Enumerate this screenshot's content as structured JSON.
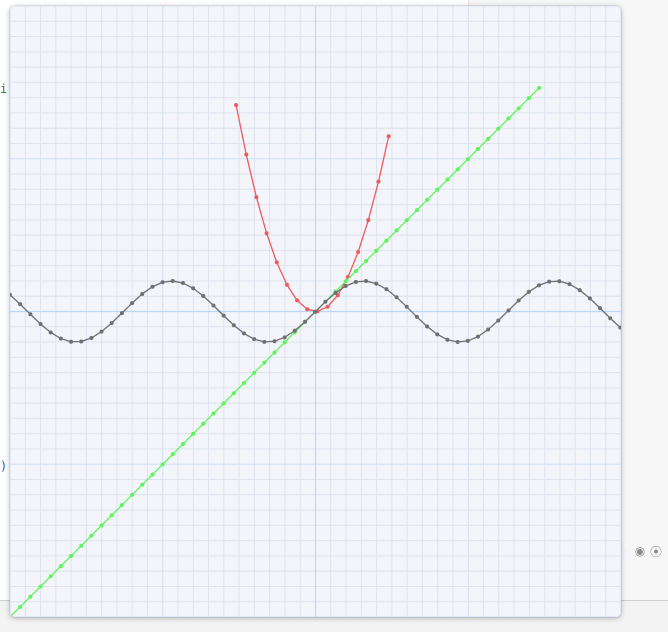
{
  "editor": {
    "fragments": [
      {
        "text": "i",
        "color": "#2e7d32"
      },
      {
        "text": ")",
        "color": "#1565c0"
      }
    ]
  },
  "popup": {
    "background": "#f3f5fa",
    "grid_minor_color": "#dde4f0",
    "grid_major_color": "#cfe0f7",
    "axis_color": "#bcd6f5"
  },
  "side_icons": [
    {
      "name": "eye-icon",
      "glyph": "◉"
    },
    {
      "name": "record-icon",
      "glyph": "⦿"
    }
  ],
  "chart_data": {
    "type": "line",
    "title": "",
    "xlabel": "",
    "ylabel": "",
    "xlim": [
      -10,
      10
    ],
    "ylim": [
      -10,
      10
    ],
    "grid": true,
    "series": [
      {
        "color": "#ef5a5a",
        "function": "x^2",
        "x_start": -2.6,
        "x_end": 2.6,
        "step": 0.333
      },
      {
        "color": "#5cf55c",
        "function": "x",
        "x_start": -10,
        "x_end": 7.4,
        "step": 0.333
      },
      {
        "color": "#707070",
        "function": "sin(x)",
        "x_start": -10,
        "x_end": 10,
        "step": 0.333
      }
    ]
  }
}
